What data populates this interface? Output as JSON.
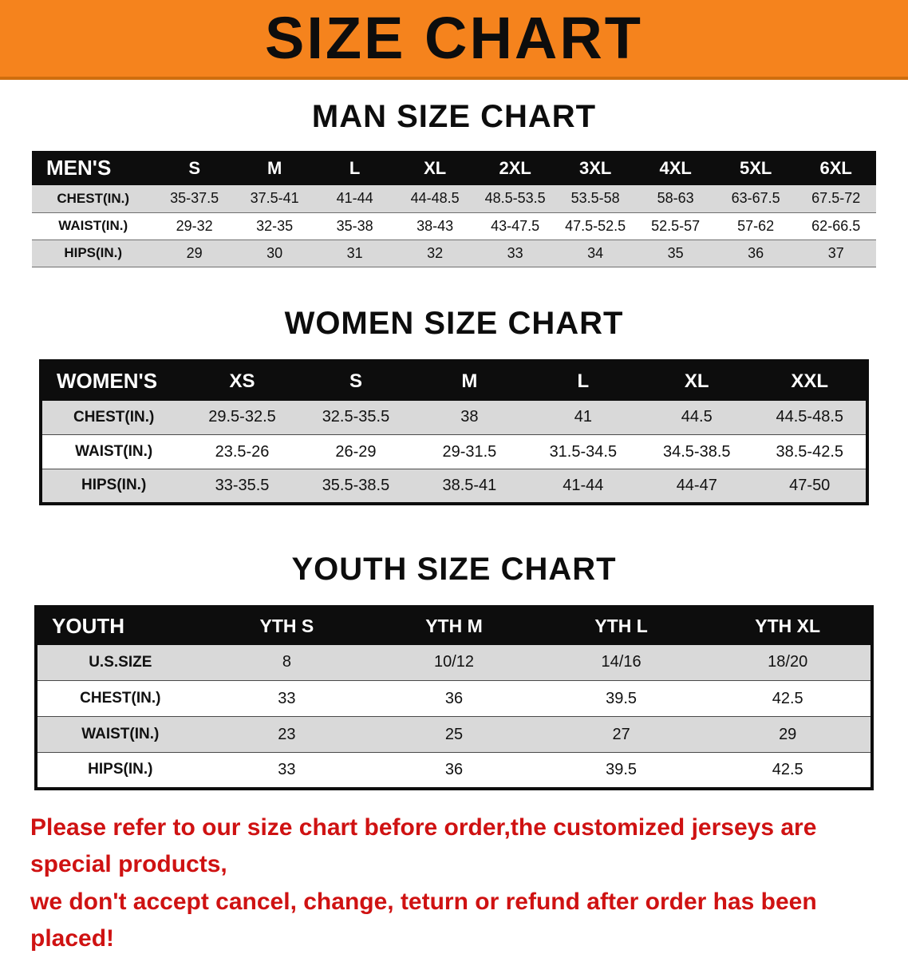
{
  "banner": {
    "title": "SIZE CHART"
  },
  "sections": [
    {
      "heading": "MAN SIZE CHART",
      "table": {
        "header": [
          "MEN'S",
          "S",
          "M",
          "L",
          "XL",
          "2XL",
          "3XL",
          "4XL",
          "5XL",
          "6XL"
        ],
        "rows": [
          [
            "CHEST(IN.)",
            "35-37.5",
            "37.5-41",
            "41-44",
            "44-48.5",
            "48.5-53.5",
            "53.5-58",
            "58-63",
            "63-67.5",
            "67.5-72"
          ],
          [
            "WAIST(IN.)",
            "29-32",
            "32-35",
            "35-38",
            "38-43",
            "43-47.5",
            "47.5-52.5",
            "52.5-57",
            "57-62",
            "62-66.5"
          ],
          [
            "HIPS(IN.)",
            "29",
            "30",
            "31",
            "32",
            "33",
            "34",
            "35",
            "36",
            "37"
          ]
        ]
      }
    },
    {
      "heading": "WOMEN SIZE CHART",
      "table": {
        "header": [
          "WOMEN'S",
          "XS",
          "S",
          "M",
          "L",
          "XL",
          "XXL"
        ],
        "rows": [
          [
            "CHEST(IN.)",
            "29.5-32.5",
            "32.5-35.5",
            "38",
            "41",
            "44.5",
            "44.5-48.5"
          ],
          [
            "WAIST(IN.)",
            "23.5-26",
            "26-29",
            "29-31.5",
            "31.5-34.5",
            "34.5-38.5",
            "38.5-42.5"
          ],
          [
            "HIPS(IN.)",
            "33-35.5",
            "35.5-38.5",
            "38.5-41",
            "41-44",
            "44-47",
            "47-50"
          ]
        ]
      }
    },
    {
      "heading": "YOUTH SIZE CHART",
      "table": {
        "header": [
          "YOUTH",
          "YTH S",
          "YTH M",
          "YTH L",
          "YTH XL"
        ],
        "rows": [
          [
            "U.S.SIZE",
            "8",
            "10/12",
            "14/16",
            "18/20"
          ],
          [
            "CHEST(IN.)",
            "33",
            "36",
            "39.5",
            "42.5"
          ],
          [
            "WAIST(IN.)",
            "23",
            "25",
            "27",
            "29"
          ],
          [
            "HIPS(IN.)",
            "33",
            "36",
            "39.5",
            "42.5"
          ]
        ]
      }
    }
  ],
  "footer": {
    "line1": "Please refer to our size chart before order,the customized jerseys are special products,",
    "line2": "we don't accept cancel, change, teturn or refund after order has been placed!"
  },
  "colors": {
    "banner_orange": "#f5831d",
    "header_black": "#0d0d0d",
    "row_gray": "#d9d9d9",
    "disclaimer_red": "#cf1212"
  }
}
